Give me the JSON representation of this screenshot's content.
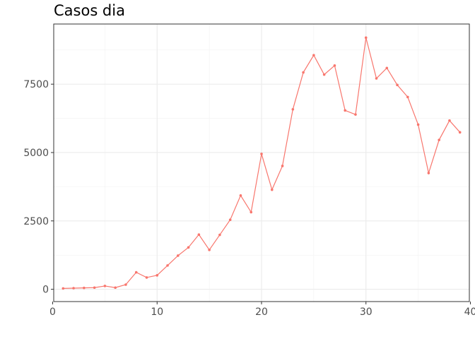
{
  "chart_data": {
    "type": "line",
    "title": "Casos dia",
    "xlabel": "",
    "ylabel": "",
    "xlim": [
      0.1,
      39.9
    ],
    "ylim": [
      -450,
      9700
    ],
    "x_ticks": [
      0,
      10,
      20,
      30,
      40
    ],
    "y_ticks": [
      0,
      2500,
      5000,
      7500
    ],
    "x_tick_labels": [
      "0",
      "10",
      "20",
      "30",
      "40"
    ],
    "y_tick_labels": [
      "0",
      "2500",
      "5000",
      "7500"
    ],
    "grid": true,
    "legend": "none",
    "series": [
      {
        "color": "#F8766D",
        "x": [
          1,
          2,
          3,
          4,
          5,
          6,
          7,
          8,
          9,
          10,
          11,
          12,
          13,
          14,
          15,
          16,
          17,
          18,
          19,
          20,
          21,
          22,
          23,
          24,
          25,
          26,
          27,
          28,
          29,
          30,
          31,
          32,
          33,
          34,
          35,
          36,
          37,
          38,
          39
        ],
        "values": [
          30,
          40,
          50,
          60,
          120,
          60,
          170,
          620,
          430,
          510,
          870,
          1230,
          1530,
          2000,
          1440,
          1990,
          2540,
          3430,
          2820,
          4950,
          3640,
          4510,
          6580,
          7930,
          8560,
          7850,
          8180,
          6540,
          6390,
          9200,
          7710,
          8090,
          7470,
          7030,
          6020,
          4250,
          5460,
          6170,
          5740
        ]
      }
    ]
  }
}
